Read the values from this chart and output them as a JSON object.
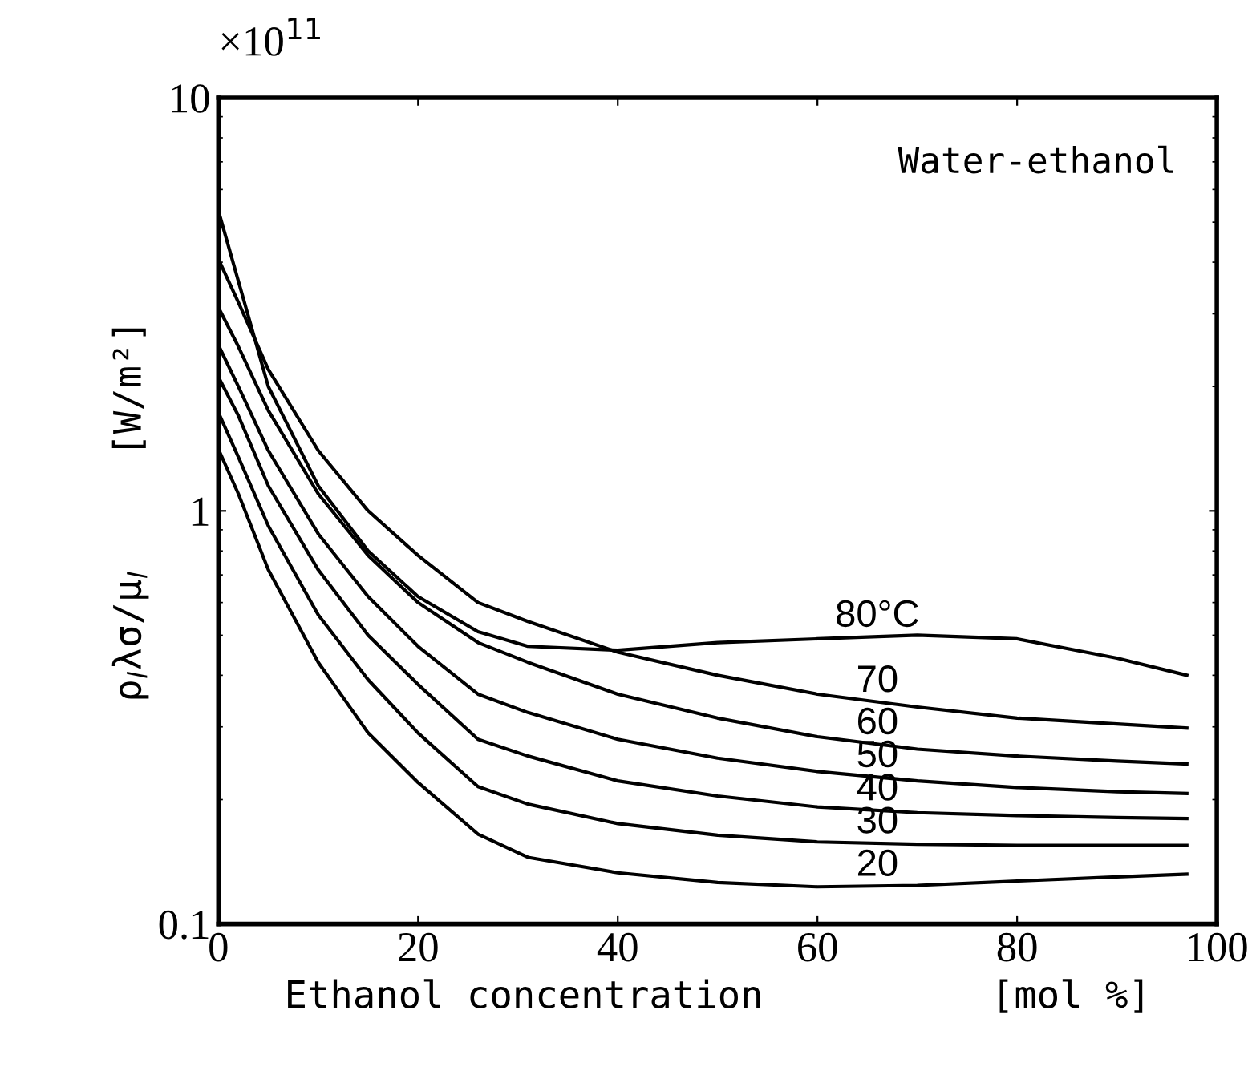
{
  "chart_data": {
    "type": "line",
    "xlabel": "Ethanol concentration          [mol %]",
    "ylabel": "ρ$_{l}$λσ/μ$_{l}$     [W/m²]",
    "annotations": [
      "×10$^{11}$",
      "Water-ethanol"
    ],
    "x": [
      0,
      2,
      5,
      10,
      15,
      20,
      26,
      31,
      40,
      50,
      60,
      70,
      80,
      90,
      97
    ],
    "series": [
      {
        "name": "80°C",
        "color": "#000000",
        "values": [
          5.33,
          3.6,
          2.0,
          1.15,
          0.8,
          0.62,
          0.51,
          0.47,
          0.46,
          0.48,
          0.49,
          0.5,
          0.49,
          0.44,
          0.4
        ]
      },
      {
        "name": "70",
        "color": "#000000",
        "values": [
          4.07,
          3.2,
          2.2,
          1.4,
          1.0,
          0.78,
          0.6,
          0.54,
          0.455,
          0.4,
          0.36,
          0.335,
          0.315,
          0.305,
          0.298
        ]
      },
      {
        "name": "60",
        "color": "#000000",
        "values": [
          3.11,
          2.5,
          1.75,
          1.1,
          0.78,
          0.6,
          0.48,
          0.43,
          0.36,
          0.315,
          0.284,
          0.265,
          0.255,
          0.248,
          0.244
        ]
      },
      {
        "name": "50",
        "color": "#000000",
        "values": [
          2.52,
          2.0,
          1.4,
          0.88,
          0.62,
          0.47,
          0.36,
          0.325,
          0.28,
          0.252,
          0.234,
          0.222,
          0.214,
          0.209,
          0.207
        ]
      },
      {
        "name": "40",
        "color": "#000000",
        "values": [
          2.11,
          1.7,
          1.15,
          0.72,
          0.5,
          0.38,
          0.28,
          0.255,
          0.222,
          0.204,
          0.192,
          0.186,
          0.183,
          0.181,
          0.18
        ]
      },
      {
        "name": "30",
        "color": "#000000",
        "values": [
          1.73,
          1.35,
          0.92,
          0.56,
          0.39,
          0.29,
          0.215,
          0.195,
          0.175,
          0.164,
          0.158,
          0.156,
          0.155,
          0.155,
          0.155
        ]
      },
      {
        "name": "20",
        "color": "#000000",
        "values": [
          1.41,
          1.1,
          0.72,
          0.43,
          0.29,
          0.22,
          0.165,
          0.145,
          0.133,
          0.126,
          0.123,
          0.124,
          0.127,
          0.13,
          0.132
        ]
      }
    ],
    "xlim": [
      0,
      100
    ],
    "xticks": [
      0,
      20,
      40,
      60,
      80,
      100
    ],
    "log": true,
    "ylim": [
      0.1,
      10
    ],
    "yticks": [
      0.1,
      1,
      10
    ],
    "grid": false,
    "legend": false,
    "marker": "none",
    "line_style": "solid"
  }
}
